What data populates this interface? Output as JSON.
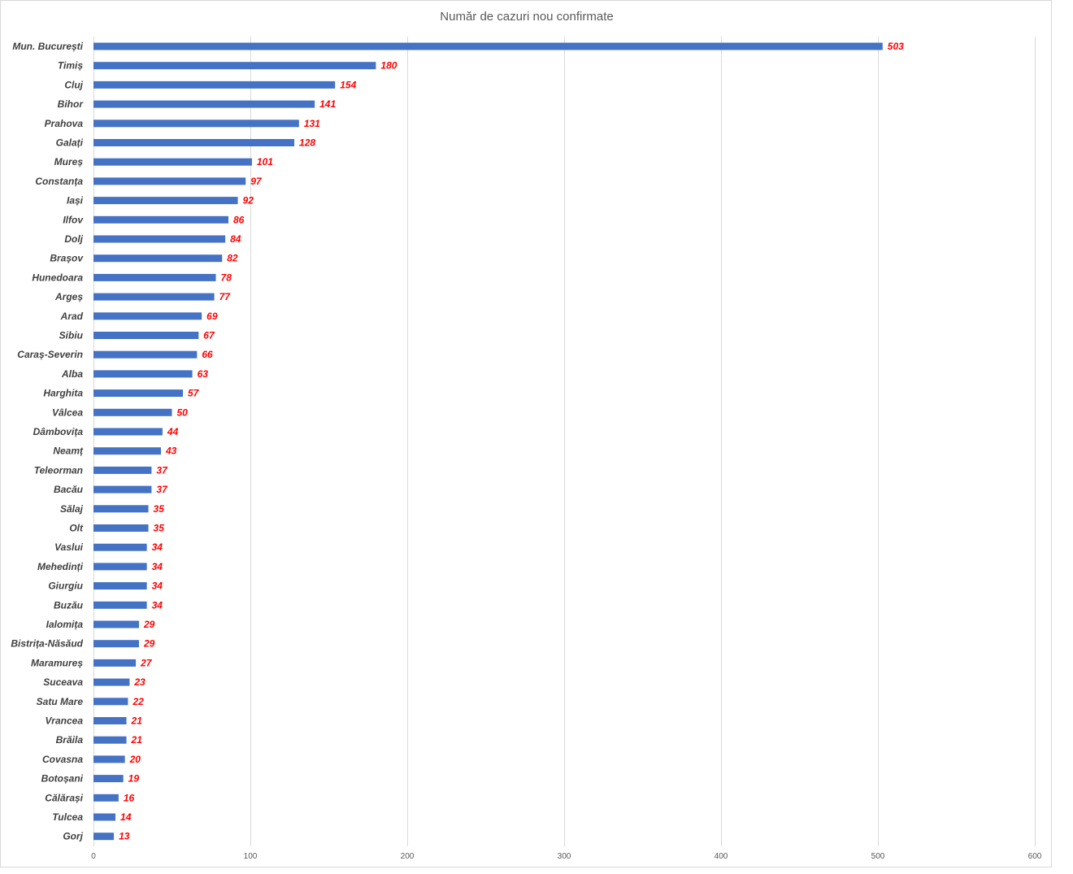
{
  "chart_data": {
    "type": "bar",
    "orientation": "horizontal",
    "title": "Număr de cazuri nou confirmate",
    "xlim": [
      0,
      600
    ],
    "xticks": [
      0,
      100,
      200,
      300,
      400,
      500,
      600
    ],
    "grid": true,
    "bar_color": "#4472c4",
    "label_color": "#ff0000",
    "categories": [
      "Mun. București",
      "Timiș",
      "Cluj",
      "Bihor",
      "Prahova",
      "Galați",
      "Mureș",
      "Constanța",
      "Iași",
      "Ilfov",
      "Dolj",
      "Brașov",
      "Hunedoara",
      "Argeș",
      "Arad",
      "Sibiu",
      "Caraș-Severin",
      "Alba",
      "Harghita",
      "Vâlcea",
      "Dâmbovița",
      "Neamț",
      "Teleorman",
      "Bacău",
      "Sălaj",
      "Olt",
      "Vaslui",
      "Mehedinți",
      "Giurgiu",
      "Buzău",
      "Ialomița",
      "Bistrița-Năsăud",
      "Maramureș",
      "Suceava",
      "Satu Mare",
      "Vrancea",
      "Brăila",
      "Covasna",
      "Botoșani",
      "Călărași",
      "Tulcea",
      "Gorj"
    ],
    "values": [
      503,
      180,
      154,
      141,
      131,
      128,
      101,
      97,
      92,
      86,
      84,
      82,
      78,
      77,
      69,
      67,
      66,
      63,
      57,
      50,
      44,
      43,
      37,
      37,
      35,
      35,
      34,
      34,
      34,
      34,
      29,
      29,
      27,
      23,
      22,
      21,
      21,
      20,
      19,
      16,
      14,
      13
    ]
  }
}
